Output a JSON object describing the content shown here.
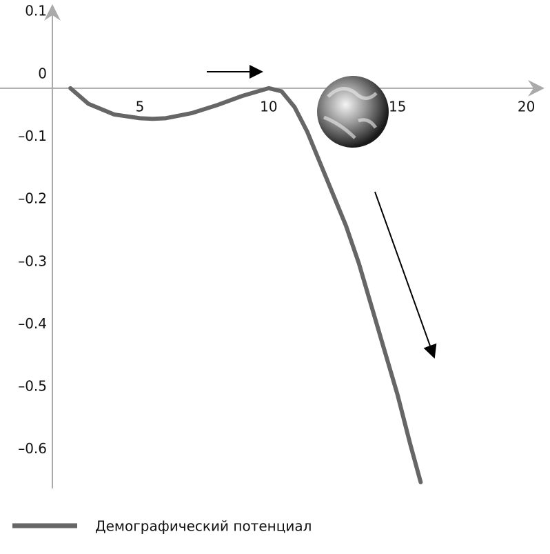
{
  "chart_data": {
    "type": "line",
    "x": [
      2.3,
      3,
      4,
      5,
      5.5,
      6,
      7,
      8,
      9,
      10,
      10.5,
      11,
      11.5,
      12,
      12.5,
      13,
      13.5,
      14,
      14.5,
      15,
      15.5,
      15.9
    ],
    "series": [
      {
        "name": "Демографический потенциал",
        "color": "#666666",
        "values": [
          0,
          -0.025,
          -0.042,
          -0.048,
          -0.049,
          -0.048,
          -0.04,
          -0.027,
          -0.012,
          0,
          -0.005,
          -0.03,
          -0.07,
          -0.12,
          -0.17,
          -0.22,
          -0.28,
          -0.35,
          -0.42,
          -0.49,
          -0.57,
          -0.63
        ]
      }
    ],
    "xlim": [
      1.6,
      20.6
    ],
    "xticks": [
      5,
      10,
      15,
      20
    ],
    "ylim": [
      -0.64,
      0.13
    ],
    "yticks": [
      0.1,
      0,
      {
        "value": -0.1,
        "label": "–0.1"
      },
      {
        "value": -0.2,
        "label": "–0.2"
      },
      {
        "value": -0.3,
        "label": "–0.3"
      },
      {
        "value": -0.4,
        "label": "–0.4"
      },
      {
        "value": -0.5,
        "label": "–0.5"
      },
      {
        "value": -0.6,
        "label": "–0.6"
      }
    ],
    "grid": false
  }
}
